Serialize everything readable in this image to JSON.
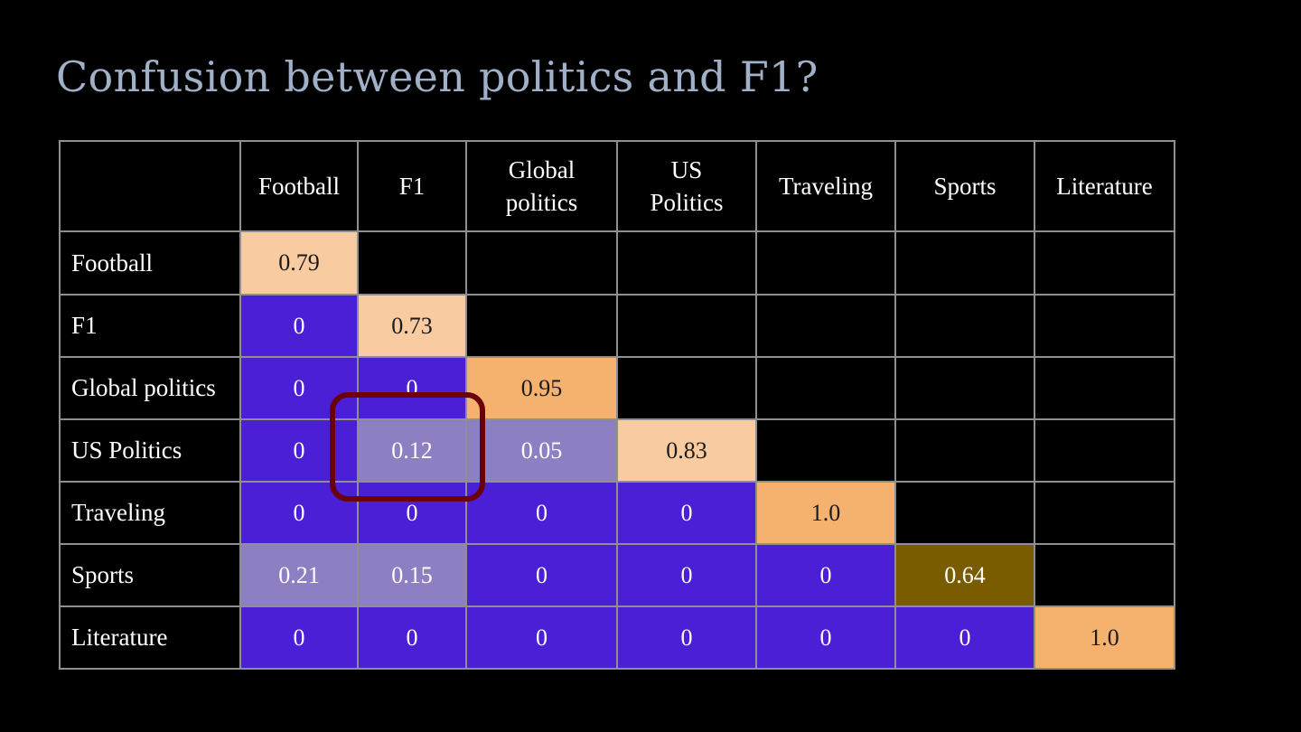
{
  "slide": {
    "title": "Confusion between politics and F1?"
  },
  "chart_data": {
    "type": "heatmap",
    "title": "",
    "col_labels": [
      "Football",
      "F1",
      "Global politics",
      "US Politics",
      "Traveling",
      "Sports",
      "Literature"
    ],
    "row_labels": [
      "Football",
      "F1",
      "Global politics",
      "US Politics",
      "Traveling",
      "Sports",
      "Literature"
    ],
    "value_labels": [
      [
        "0.79",
        "",
        "",
        "",
        "",
        "",
        ""
      ],
      [
        "0",
        "0.73",
        "",
        "",
        "",
        "",
        ""
      ],
      [
        "0",
        "0",
        "0.95",
        "",
        "",
        "",
        ""
      ],
      [
        "0",
        "0.12",
        "0.05",
        "0.83",
        "",
        "",
        ""
      ],
      [
        "0",
        "0",
        "0",
        "0",
        "1.0",
        "",
        ""
      ],
      [
        "0.21",
        "0.15",
        "0",
        "0",
        "0",
        "0.64",
        ""
      ],
      [
        "0",
        "0",
        "0",
        "0",
        "0",
        "0",
        "1.0"
      ]
    ],
    "values": [
      [
        0.79,
        null,
        null,
        null,
        null,
        null,
        null
      ],
      [
        0,
        0.73,
        null,
        null,
        null,
        null,
        null
      ],
      [
        0,
        0,
        0.95,
        null,
        null,
        null,
        null
      ],
      [
        0,
        0.12,
        0.05,
        0.83,
        null,
        null,
        null
      ],
      [
        0,
        0,
        0,
        0,
        1.0,
        null,
        null
      ],
      [
        0.21,
        0.15,
        0,
        0,
        0,
        0.64,
        null
      ],
      [
        0,
        0,
        0,
        0,
        0,
        0,
        1.0
      ]
    ],
    "highlight": {
      "rows": [
        "Global politics",
        "US Politics"
      ],
      "col": "F1"
    }
  },
  "colors": {
    "background": "#000000",
    "title": "#9fb0c8",
    "grid": "#8f8f8f",
    "zero_cell": "#4a1fd6",
    "low_cell": "#8e7fc3",
    "diagonal_light": "#f8cba0",
    "diagonal_orange": "#f5b26f",
    "diagonal_olive": "#7a5c00",
    "highlight_box": "#6a0008"
  }
}
